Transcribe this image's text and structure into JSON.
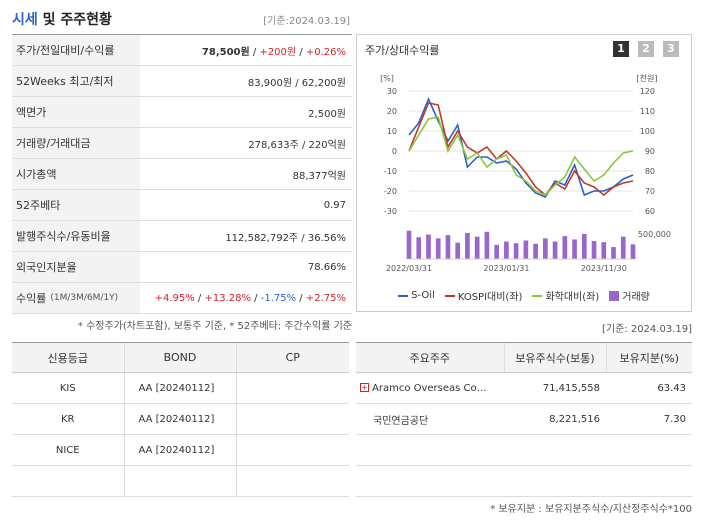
{
  "left_header": {
    "title_accent": "시세",
    "title_rest": " 및 주주현황",
    "date": "[기준:2024.03.19]"
  },
  "quote": {
    "price_label": "주가/전일대비/수익률",
    "price": "78,500원",
    "change": "+200원",
    "change_pct": "+0.26%",
    "week52_label": "52Weeks 최고/최저",
    "week52": "83,900원 / 62,200원",
    "par_label": "액면가",
    "par": "2,500원",
    "volume_label": "거래량/거래대금",
    "volume": "278,633주 / 220억원",
    "mcap_label": "시가총액",
    "mcap": "88,377억원",
    "beta_label": "52주베타",
    "beta": "0.97",
    "shares_label": "발행주식수/유동비율",
    "shares": "112,582,792주 / 36.56%",
    "foreign_label": "외국인지분율",
    "foreign": "78.66%",
    "return_label": "수익률",
    "return_periods": "(1M/3M/6M/1Y)",
    "return_1m": "+4.95%",
    "return_3m": "+13.28%",
    "return_6m": "-1.75%",
    "return_1y": "+2.75%"
  },
  "footnote_left": "* 수정주가(차트포함), 보통주 기준, * 52주베타: 주간수익률 기준",
  "chart_panel": {
    "title": "주가/상대수익률",
    "tabs": [
      "1",
      "2",
      "3"
    ],
    "active_tab": 0
  },
  "chart_data": {
    "type": "line",
    "left_axis_label": "[%]",
    "right_axis_label": "[천원]",
    "left_ylim": [
      -30,
      30
    ],
    "right_ylim": [
      60,
      120
    ],
    "left_ticks": [
      "30",
      "20",
      "10",
      "0",
      "-10",
      "-20",
      "-30"
    ],
    "right_ticks": [
      "120",
      "110",
      "100",
      "90",
      "80",
      "70",
      "60"
    ],
    "volume_max_label": "500,000",
    "x_ticks": [
      "2022/03/31",
      "2023/01/31",
      "2023/11/30"
    ],
    "x_tick_index": [
      0,
      10,
      20
    ],
    "series": [
      {
        "name": "S-Oil",
        "color": "#2a62c9",
        "axis": "left",
        "values": [
          8,
          14,
          26,
          15,
          5,
          13,
          -8,
          -3,
          -3,
          -6,
          -5,
          -9,
          -16,
          -21,
          -23,
          -15,
          -17,
          -7,
          -22,
          -20,
          -20,
          -18,
          -14,
          -12
        ]
      },
      {
        "name": "KOSPI대비(좌)",
        "color": "#c0392b",
        "axis": "left",
        "values": [
          0,
          12,
          24,
          23,
          2,
          10,
          2,
          -1,
          2,
          -4,
          0,
          -5,
          -11,
          -18,
          -22,
          -16,
          -19,
          -10,
          -16,
          -18,
          -22,
          -18,
          -16,
          -15
        ]
      },
      {
        "name": "화학대비(좌)",
        "color": "#8cc63f",
        "axis": "left",
        "values": [
          0,
          8,
          16,
          17,
          0,
          8,
          -4,
          -1,
          -8,
          -4,
          -2,
          -12,
          -15,
          -20,
          -22,
          -17,
          -13,
          -3,
          -9,
          -15,
          -12,
          -6,
          -1,
          0
        ]
      }
    ],
    "volume": {
      "name": "거래량",
      "color": "#9966cc",
      "values": [
        52,
        40,
        45,
        38,
        44,
        30,
        48,
        41,
        50,
        26,
        32,
        29,
        34,
        28,
        38,
        32,
        42,
        36,
        46,
        33,
        31,
        22,
        41,
        27
      ]
    }
  },
  "credit": {
    "headers": [
      "신용등급",
      "BOND",
      "CP"
    ],
    "rows": [
      [
        "KIS",
        "AA [20240112]",
        ""
      ],
      [
        "KR",
        "AA [20240112]",
        ""
      ],
      [
        "NICE",
        "AA [20240112]",
        ""
      ],
      [
        "",
        "",
        ""
      ]
    ]
  },
  "holders": {
    "date": "[기준: 2024.03.19]",
    "headers": [
      "주요주주",
      "보유주식수(보통)",
      "보유지분(%)"
    ],
    "rows": [
      [
        "Aramco Overseas Co…",
        "71,415,558",
        "63.43"
      ],
      [
        "국민연금공단",
        "8,221,516",
        "7.30"
      ],
      [
        "",
        "",
        ""
      ],
      [
        "",
        "",
        ""
      ]
    ]
  },
  "bottom_note": "* 보유지분 : 보유지분주식수/지산정주식수*100"
}
